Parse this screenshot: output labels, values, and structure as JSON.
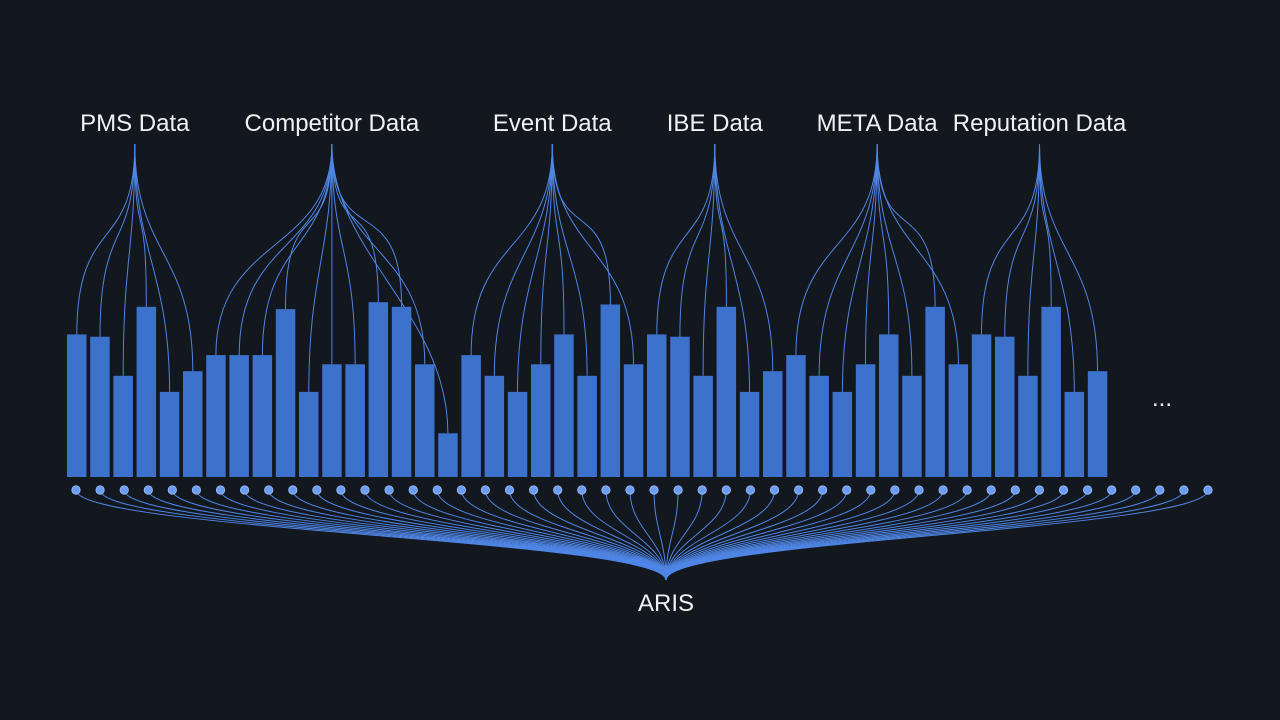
{
  "sources": [
    {
      "label": "PMS Data",
      "bars": 6
    },
    {
      "label": "Competitor Data",
      "bars": 11
    },
    {
      "label": "Event Data",
      "bars": 8
    },
    {
      "label": "IBE Data",
      "bars": 6
    },
    {
      "label": "META Data",
      "bars": 8
    },
    {
      "label": "Reputation Data",
      "bars": 6
    }
  ],
  "bar_levels": [
    62,
    61,
    44,
    74,
    37,
    46,
    53,
    53,
    53,
    73,
    37,
    49,
    49,
    76,
    74,
    49,
    19,
    53,
    44,
    37,
    49,
    62,
    44,
    75,
    49,
    62,
    61,
    44,
    74,
    37,
    46,
    53,
    44,
    37,
    49,
    62,
    44,
    74,
    49,
    62,
    61,
    44,
    74,
    37,
    46
  ],
  "node_count": 48,
  "target": {
    "label": "ARIS"
  },
  "ellipsis": "...",
  "colors": {
    "background": "#13171e",
    "bar": "#3d72cc",
    "line": "#4f86e6",
    "node": "#6b9cf2",
    "text": "#eef1f6"
  }
}
